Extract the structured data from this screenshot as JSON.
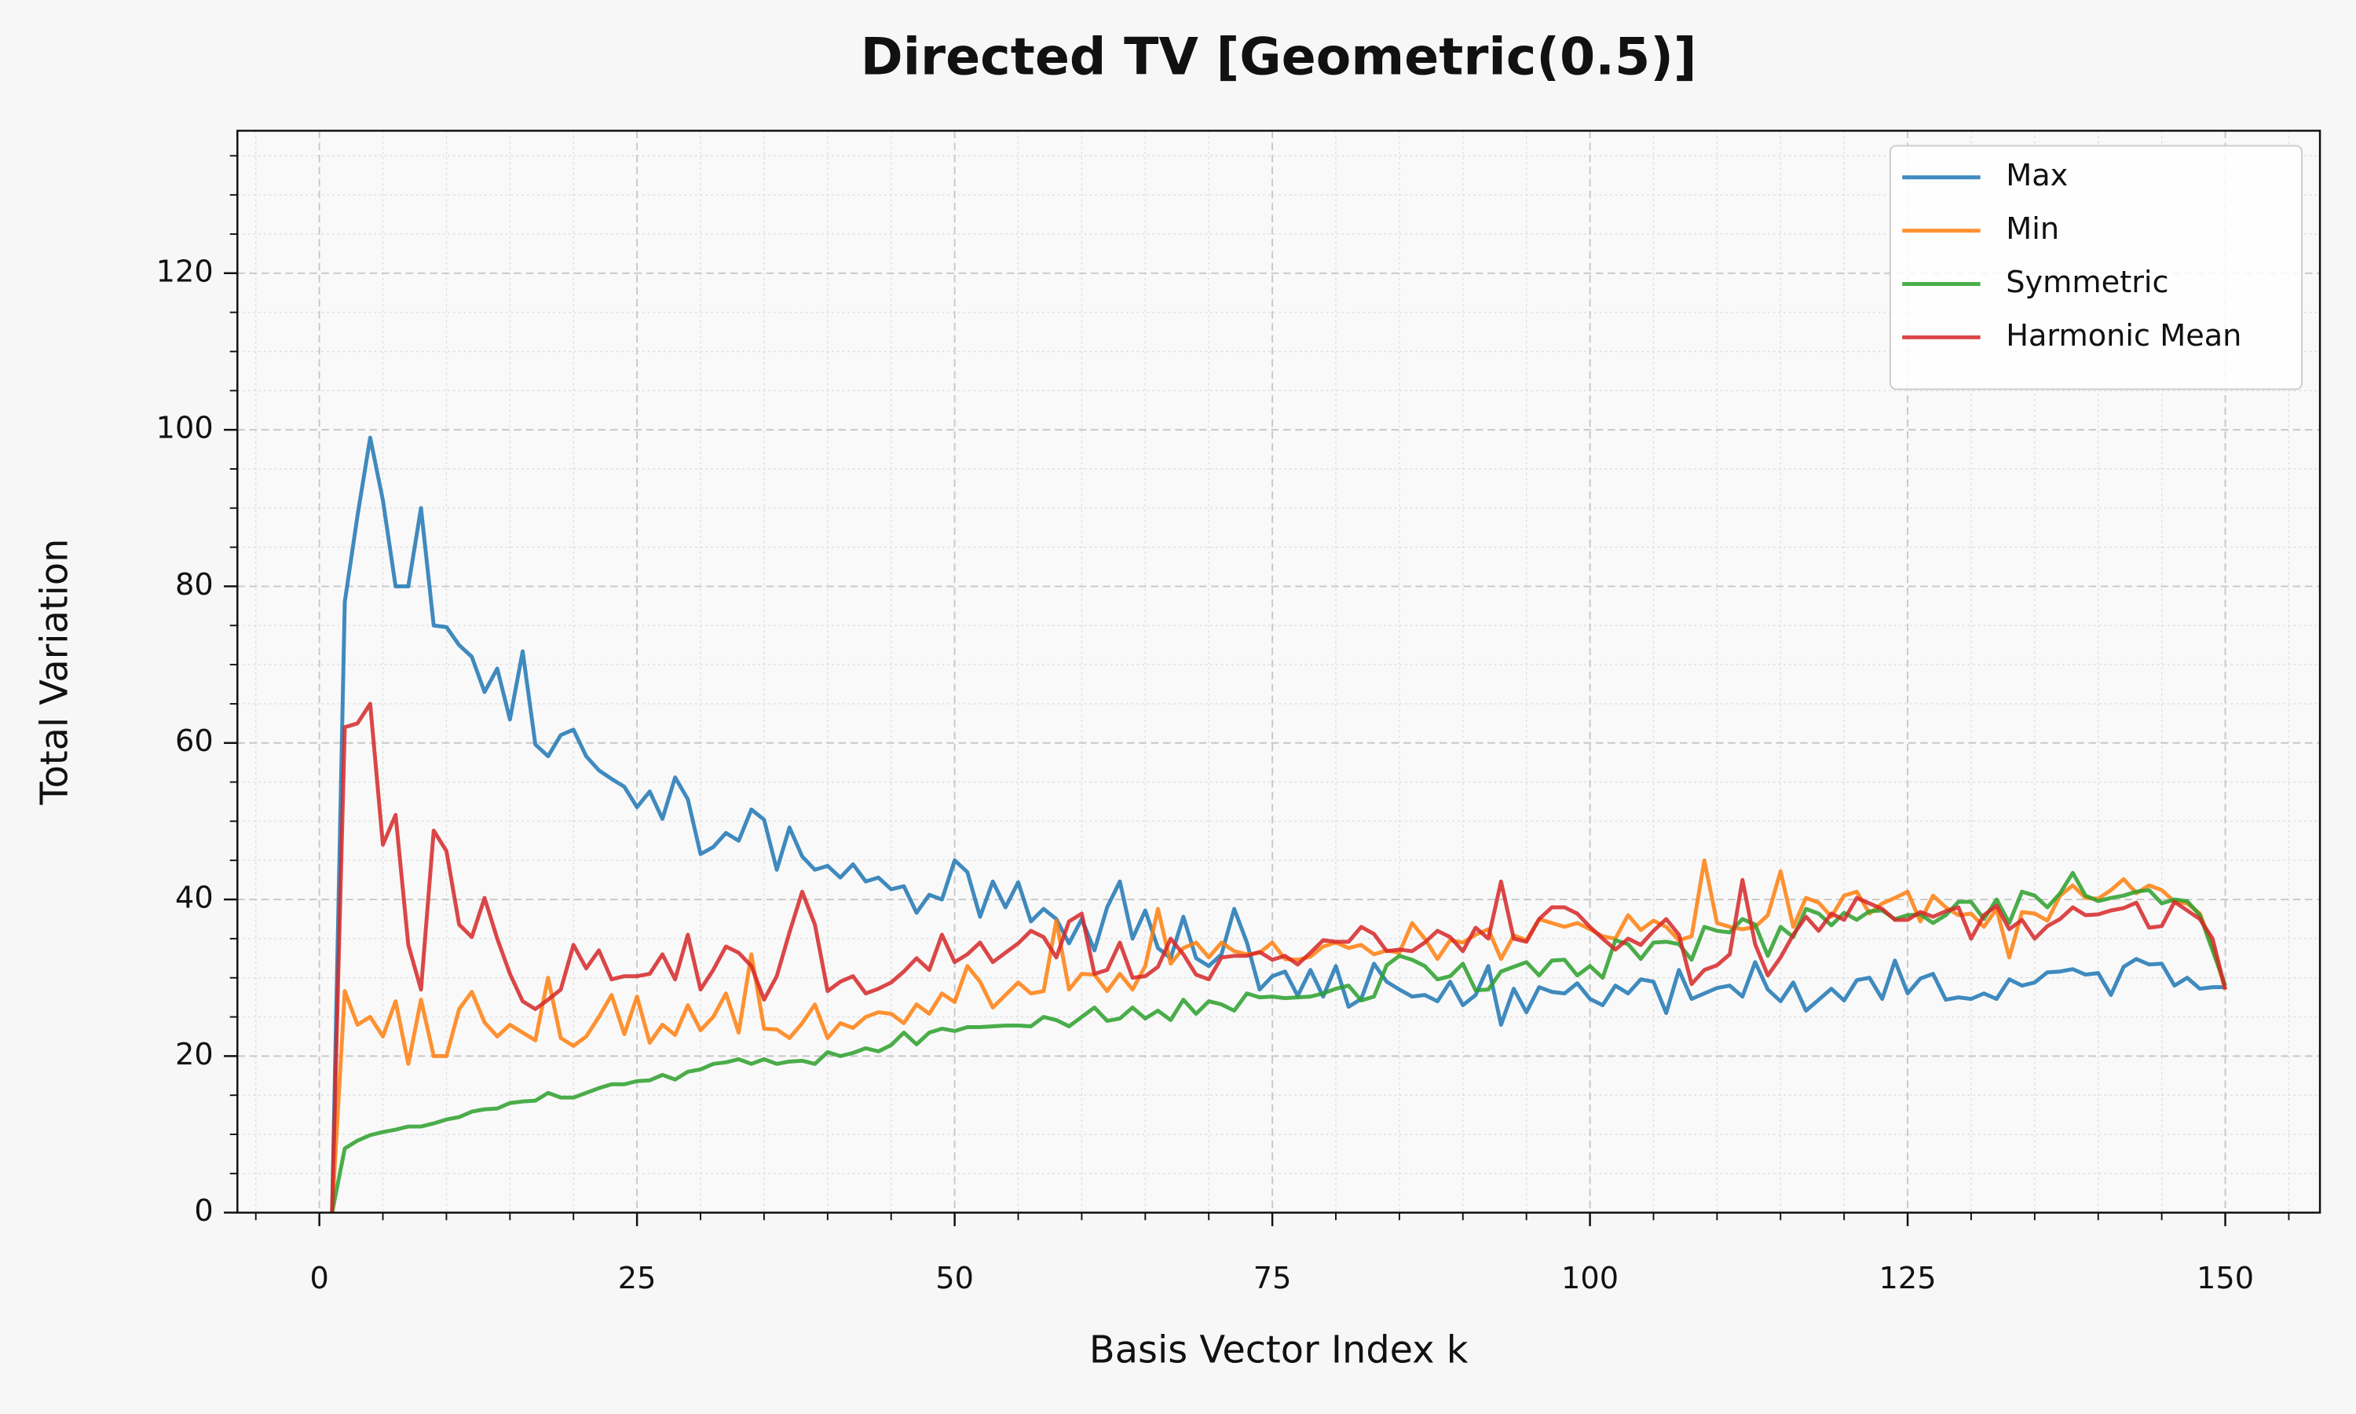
{
  "chart_data": {
    "type": "line",
    "title": "Directed TV [Geometric(0.5)]",
    "xlabel": "Basis Vector Index k",
    "ylabel": "Total Variation",
    "x": [
      1,
      2,
      3,
      4,
      5,
      6,
      7,
      8,
      9,
      10,
      11,
      12,
      13,
      14,
      15,
      16,
      17,
      18,
      19,
      20,
      21,
      22,
      23,
      24,
      25,
      26,
      27,
      28,
      29,
      30,
      31,
      32,
      33,
      34,
      35,
      36,
      37,
      38,
      39,
      40,
      41,
      42,
      43,
      44,
      45,
      46,
      47,
      48,
      49,
      50,
      51,
      52,
      53,
      54,
      55,
      56,
      57,
      58,
      59,
      60,
      61,
      62,
      63,
      64,
      65,
      66,
      67,
      68,
      69,
      70,
      71,
      72,
      73,
      74,
      75,
      76,
      77,
      78,
      79,
      80,
      81,
      82,
      83,
      84,
      85,
      86,
      87,
      88,
      89,
      90,
      91,
      92,
      93,
      94,
      95,
      96,
      97,
      98,
      99,
      100,
      101,
      102,
      103,
      104,
      105,
      106,
      107,
      108,
      109,
      110,
      111,
      112,
      113,
      114,
      115,
      116,
      117,
      118,
      119,
      120,
      121,
      122,
      123,
      124,
      125,
      126,
      127,
      128,
      129,
      130,
      131,
      132,
      133,
      134,
      135,
      136,
      137,
      138,
      139,
      140,
      141,
      142,
      143,
      144,
      145,
      146,
      147,
      148,
      149,
      150
    ],
    "series": [
      {
        "name": "Max",
        "color": "#1f77b4",
        "values": [
          0,
          78,
          89,
          99,
          91,
          80,
          80,
          90,
          75,
          74.8,
          72.5,
          71,
          66.5,
          69.5,
          63,
          71.7,
          59.8,
          58.3,
          61,
          61.7,
          58.3,
          56.5,
          55.4,
          54.4,
          51.8,
          53.8,
          50.3,
          55.6,
          52.8,
          45.8,
          46.7,
          48.5,
          47.5,
          51.5,
          50.2,
          43.8,
          49.2,
          45.5,
          43.8,
          44.3,
          42.8,
          44.5,
          42.3,
          42.8,
          41.3,
          41.7,
          38.3,
          40.6,
          40,
          45,
          43.5,
          37.8,
          42.3,
          39,
          42.2,
          37.2,
          38.8,
          37.5,
          34.4,
          37.5,
          33.5,
          39,
          42.3,
          35,
          38.6,
          33.8,
          32.5,
          37.8,
          32.5,
          31.5,
          33,
          38.8,
          34.5,
          28.5,
          30.2,
          30.8,
          27.7,
          31,
          27.6,
          31.5,
          26.3,
          27.3,
          31.8,
          29.5,
          28.5,
          27.6,
          27.8,
          27,
          29.5,
          26.5,
          27.8,
          31.5,
          24,
          28.6,
          25.6,
          28.8,
          28.2,
          28,
          29.3,
          27.3,
          26.5,
          29,
          28,
          29.8,
          29.5,
          25.5,
          31,
          27.3,
          28,
          28.7,
          29,
          27.6,
          32,
          28.5,
          27,
          29.4,
          25.8,
          27.2,
          28.6,
          27.1,
          29.7,
          30,
          27.3,
          32.2,
          28,
          29.9,
          30.5,
          27.2,
          27.5,
          27.3,
          28,
          27.3,
          29.8,
          29,
          29.4,
          30.7,
          30.8,
          31.1,
          30.4,
          30.6,
          27.8,
          31.4,
          32.4,
          31.7,
          31.8,
          29,
          30,
          28.6,
          28.8,
          28.8
        ]
      },
      {
        "name": "Min",
        "color": "#ff7f0e",
        "values": [
          0,
          28.3,
          24,
          25,
          22.5,
          27,
          19,
          27.2,
          20,
          20,
          26,
          28.2,
          24.3,
          22.5,
          24,
          23,
          22,
          30,
          22.3,
          21.3,
          22.5,
          25,
          27.8,
          22.8,
          27.6,
          21.7,
          24,
          22.7,
          26.5,
          23.3,
          25,
          28,
          23,
          33,
          23.5,
          23.4,
          22.3,
          24.2,
          26.6,
          22.3,
          24.2,
          23.6,
          25,
          25.6,
          25.4,
          24.2,
          26.6,
          25.4,
          28,
          26.9,
          31.5,
          29.5,
          26.2,
          27.8,
          29.4,
          28,
          28.3,
          37.3,
          28.5,
          30.5,
          30.4,
          28.3,
          30.5,
          28.5,
          31.5,
          38.8,
          31.8,
          33.8,
          34.5,
          32.6,
          34.5,
          33.4,
          33,
          33.2,
          34.5,
          32.4,
          32.3,
          32.7,
          34,
          34.5,
          33.8,
          34.2,
          33,
          33.5,
          33.2,
          37,
          35,
          32.4,
          34.8,
          34.5,
          35.5,
          36.2,
          32.4,
          35.4,
          34.8,
          37.5,
          37,
          36.5,
          37,
          36.2,
          35.3,
          35,
          38,
          36.1,
          37.3,
          36.5,
          34.8,
          35.3,
          45,
          37,
          36.5,
          36.2,
          36.5,
          38,
          43.6,
          36.5,
          40.2,
          39.6,
          37.8,
          40.5,
          41,
          38.2,
          39.5,
          40.2,
          41,
          37.2,
          40.5,
          39,
          38,
          38.2,
          36.5,
          38.8,
          32.6,
          38.4,
          38.2,
          37.3,
          40.5,
          41.8,
          40.2,
          40.1,
          41.2,
          42.6,
          40.8,
          41.8,
          41.2,
          39.7,
          39.5,
          38.2,
          34,
          28.5
        ]
      },
      {
        "name": "Symmetric",
        "color": "#2ca02c",
        "values": [
          0,
          8.2,
          9.2,
          9.9,
          10.3,
          10.6,
          11,
          11,
          11.4,
          11.9,
          12.2,
          12.9,
          13.2,
          13.3,
          14,
          14.2,
          14.3,
          15.3,
          14.7,
          14.7,
          15.3,
          15.9,
          16.4,
          16.4,
          16.8,
          16.9,
          17.6,
          17,
          18,
          18.3,
          19,
          19.2,
          19.6,
          19,
          19.6,
          19,
          19.3,
          19.4,
          19,
          20.5,
          20,
          20.4,
          21,
          20.6,
          21.4,
          23,
          21.5,
          23,
          23.5,
          23.2,
          23.7,
          23.7,
          23.8,
          23.9,
          23.9,
          23.8,
          25,
          24.6,
          23.8,
          25,
          26.2,
          24.5,
          24.8,
          26.2,
          24.8,
          25.8,
          24.6,
          27.2,
          25.4,
          27,
          26.6,
          25.8,
          28,
          27.5,
          27.6,
          27.4,
          27.5,
          27.6,
          28,
          28.6,
          29,
          27.1,
          27.6,
          31.6,
          32.8,
          32.3,
          31.5,
          29.8,
          30.2,
          31.8,
          28.4,
          28.5,
          30.8,
          31.4,
          32,
          30.3,
          32.2,
          32.3,
          30.3,
          31.5,
          30,
          34.8,
          34.3,
          32.4,
          34.5,
          34.6,
          34.3,
          32.3,
          36.5,
          36,
          35.8,
          37.5,
          36.8,
          32.8,
          36.5,
          35.2,
          38.8,
          38.2,
          36.7,
          38.3,
          37.4,
          38.5,
          38.6,
          37.5,
          38,
          38.1,
          37,
          38,
          39.7,
          39.7,
          37.5,
          40,
          37,
          41,
          40.5,
          39,
          40.8,
          43.4,
          40.5,
          39.8,
          40.2,
          40.5,
          41,
          41.2,
          39.5,
          40,
          39.8,
          38,
          33.5,
          29
        ]
      },
      {
        "name": "Harmonic Mean",
        "color": "#d62728",
        "values": [
          0,
          62,
          62.5,
          65,
          47,
          50.8,
          34.2,
          28.5,
          48.8,
          46.2,
          36.8,
          35.2,
          40.2,
          35,
          30.5,
          27,
          26,
          27.2,
          28.5,
          34.2,
          31.2,
          33.5,
          29.8,
          30.2,
          30.2,
          30.5,
          33,
          29.8,
          35.5,
          28.5,
          31,
          34,
          33.2,
          31.5,
          27.2,
          30.2,
          35.8,
          41,
          36.8,
          28.3,
          29.5,
          30.2,
          28,
          28.6,
          29.4,
          30.8,
          32.5,
          31,
          35.5,
          32,
          33,
          34.5,
          32,
          33.2,
          34.4,
          36,
          35.2,
          32.6,
          37.2,
          38.2,
          30.5,
          31,
          34.5,
          30,
          30.2,
          31.4,
          35,
          33,
          30.4,
          29.8,
          32.6,
          32.8,
          32.8,
          33.3,
          32.3,
          32.8,
          31.7,
          33.2,
          34.8,
          34.6,
          34.6,
          36.5,
          35.6,
          33.4,
          33.6,
          33.4,
          34.5,
          36,
          35.2,
          33.4,
          36.4,
          35,
          42.3,
          35,
          34.6,
          37.5,
          39,
          39,
          38.2,
          36.5,
          35,
          33.6,
          35,
          34.2,
          36,
          37.5,
          35.5,
          29.2,
          31,
          31.6,
          33,
          42.5,
          34.3,
          30.3,
          32.6,
          35.5,
          37.8,
          36,
          38.2,
          37.4,
          40.2,
          39.5,
          38.8,
          37.4,
          37.4,
          38.4,
          37.8,
          38.5,
          39,
          35,
          38,
          39.2,
          36.2,
          37.4,
          35,
          36.6,
          37.5,
          39,
          38,
          38.1,
          38.6,
          38.9,
          39.6,
          36.4,
          36.6,
          39.7,
          38.6,
          37.5,
          35,
          28.5
        ]
      }
    ],
    "xlim": [
      -6.45,
      157.45
    ],
    "ylim": [
      0,
      138.2
    ],
    "xticks": [
      0,
      25,
      50,
      75,
      100,
      125,
      150
    ],
    "yticks": [
      0,
      20,
      40,
      60,
      80,
      100,
      120
    ],
    "xminorticks": [
      -5,
      5,
      10,
      15,
      20,
      30,
      35,
      40,
      45,
      55,
      60,
      65,
      70,
      80,
      85,
      90,
      95,
      105,
      110,
      115,
      120,
      130,
      135,
      140,
      145,
      155
    ],
    "yminorticks": [
      5,
      10,
      15,
      25,
      30,
      35,
      45,
      50,
      55,
      65,
      70,
      75,
      85,
      90,
      95,
      105,
      110,
      115,
      125,
      130,
      135
    ],
    "grid": true,
    "legend": "upper right"
  }
}
